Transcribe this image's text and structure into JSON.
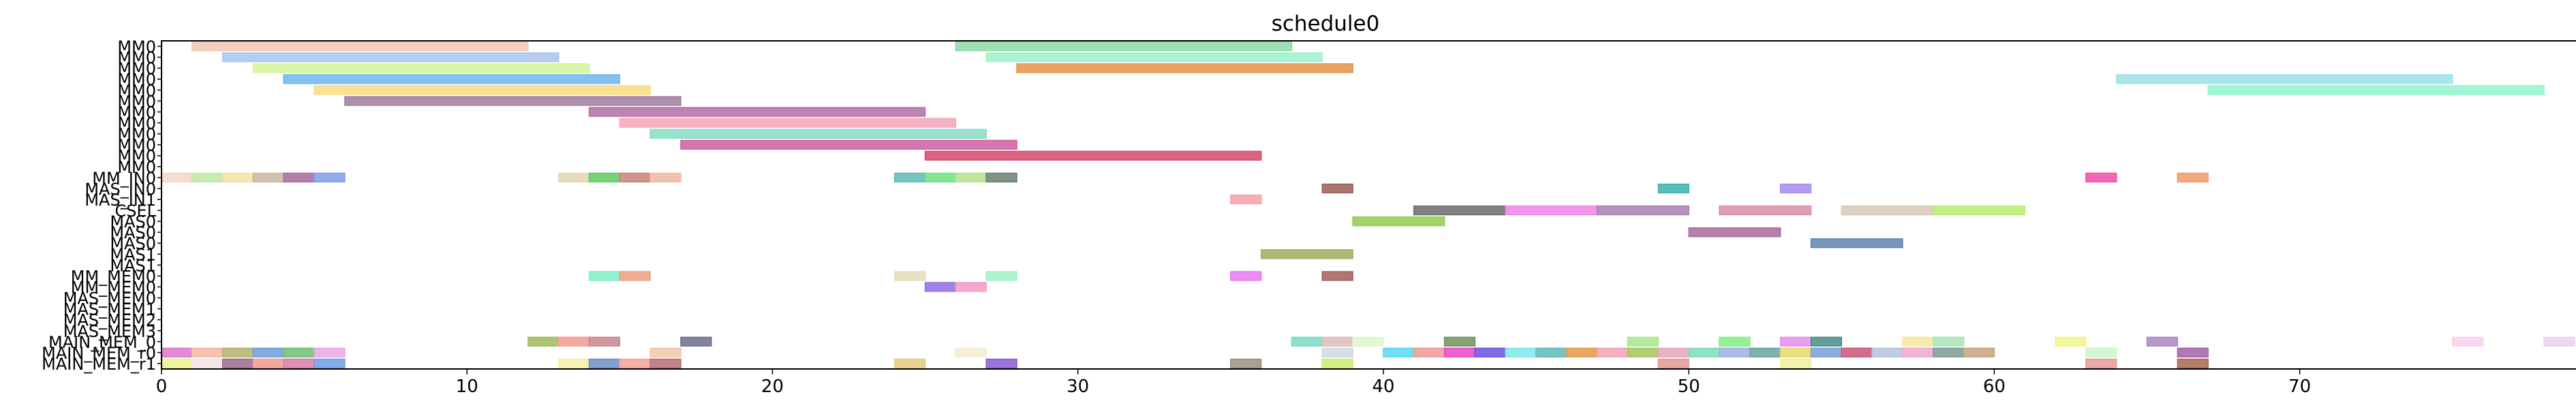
{
  "chart_data": {
    "type": "gantt",
    "title": "schedule0",
    "xlim": [
      0,
      79
    ],
    "x_ticks": [
      0,
      10,
      20,
      30,
      40,
      50,
      60,
      70
    ],
    "lanes": [
      "MM0",
      "MM0",
      "MM0",
      "MM0",
      "MM0",
      "MM0",
      "MM0",
      "MM0",
      "MM0",
      "MM0",
      "MM0",
      "MM0",
      "MM_IN0",
      "MAS_IN0",
      "MAS_IN1",
      "CSEL",
      "MAS0",
      "MAS0",
      "MAS0",
      "MAS1",
      "MAS1",
      "MM_MEM0",
      "MM_MEM0",
      "MAS_MEM0",
      "MAS_MEM1",
      "MAS_MEM2",
      "MAS_MEM3",
      "MAIN_MEM_0",
      "MAIN_MEM_r0",
      "MAIN_MEM_r1"
    ],
    "tasks": [
      {
        "lane": 0,
        "start": 1,
        "end": 12,
        "color": "#f2c8b4"
      },
      {
        "lane": 0,
        "start": 26,
        "end": 37,
        "color": "#8fd9a8"
      },
      {
        "lane": 1,
        "start": 2,
        "end": 13,
        "color": "#a9c4ea"
      },
      {
        "lane": 1,
        "start": 27,
        "end": 38,
        "color": "#9df2c9"
      },
      {
        "lane": 2,
        "start": 3,
        "end": 14,
        "color": "#d3f59a"
      },
      {
        "lane": 2,
        "start": 28,
        "end": 39,
        "color": "#e5924a"
      },
      {
        "lane": 3,
        "start": 4,
        "end": 15,
        "color": "#6fb6ee"
      },
      {
        "lane": 3,
        "start": 64,
        "end": 75,
        "color": "#9ce3e4"
      },
      {
        "lane": 4,
        "start": 5,
        "end": 16,
        "color": "#f7dc80"
      },
      {
        "lane": 4,
        "start": 67,
        "end": 78,
        "color": "#8ff5cc"
      },
      {
        "lane": 5,
        "start": 6,
        "end": 17,
        "color": "#a07e9e"
      },
      {
        "lane": 6,
        "start": 14,
        "end": 25,
        "color": "#b16fa6"
      },
      {
        "lane": 7,
        "start": 15,
        "end": 26,
        "color": "#f5a6b8"
      },
      {
        "lane": 8,
        "start": 16,
        "end": 27,
        "color": "#86ddc4"
      },
      {
        "lane": 9,
        "start": 17,
        "end": 28,
        "color": "#cf5e9e"
      },
      {
        "lane": 10,
        "start": 25,
        "end": 36,
        "color": "#d4486c"
      },
      {
        "lane": 12,
        "start": 0,
        "end": 1,
        "color": "#f5d6c8"
      },
      {
        "lane": 12,
        "start": 1,
        "end": 2,
        "color": "#bfe6a6"
      },
      {
        "lane": 12,
        "start": 2,
        "end": 3,
        "color": "#f2e3a3"
      },
      {
        "lane": 12,
        "start": 3,
        "end": 4,
        "color": "#c9b79f"
      },
      {
        "lane": 12,
        "start": 4,
        "end": 5,
        "color": "#a5699a"
      },
      {
        "lane": 12,
        "start": 5,
        "end": 6,
        "color": "#7c9de6"
      },
      {
        "lane": 12,
        "start": 13,
        "end": 14,
        "color": "#e0d8b2"
      },
      {
        "lane": 12,
        "start": 14,
        "end": 15,
        "color": "#5fcb5f"
      },
      {
        "lane": 12,
        "start": 15,
        "end": 16,
        "color": "#c5827a"
      },
      {
        "lane": 12,
        "start": 16,
        "end": 17,
        "color": "#efb8a0"
      },
      {
        "lane": 12,
        "start": 24,
        "end": 25,
        "color": "#5fbab3"
      },
      {
        "lane": 12,
        "start": 25,
        "end": 26,
        "color": "#6de07e"
      },
      {
        "lane": 12,
        "start": 26,
        "end": 27,
        "color": "#b6e18e"
      },
      {
        "lane": 12,
        "start": 27,
        "end": 28,
        "color": "#6a8070"
      },
      {
        "lane": 12,
        "start": 63,
        "end": 64,
        "color": "#ee4fa7"
      },
      {
        "lane": 12,
        "start": 66,
        "end": 67,
        "color": "#ee9a6c"
      },
      {
        "lane": 13,
        "start": 38,
        "end": 39,
        "color": "#9b5f55"
      },
      {
        "lane": 13,
        "start": 49,
        "end": 50,
        "color": "#3ab3b0"
      },
      {
        "lane": 13,
        "start": 53,
        "end": 54,
        "color": "#a58cf2"
      },
      {
        "lane": 14,
        "start": 35,
        "end": 36,
        "color": "#f7a1a6"
      },
      {
        "lane": 15,
        "start": 41,
        "end": 44,
        "color": "#6a6a6a"
      },
      {
        "lane": 15,
        "start": 44,
        "end": 47,
        "color": "#f083e6"
      },
      {
        "lane": 15,
        "start": 47,
        "end": 50,
        "color": "#a87eb4"
      },
      {
        "lane": 15,
        "start": 51,
        "end": 54,
        "color": "#dc8ea4"
      },
      {
        "lane": 15,
        "start": 55,
        "end": 58,
        "color": "#d8c7b9"
      },
      {
        "lane": 15,
        "start": 58,
        "end": 61,
        "color": "#b6ec6d"
      },
      {
        "lane": 16,
        "start": 39,
        "end": 42,
        "color": "#8fcd4e"
      },
      {
        "lane": 17,
        "start": 50,
        "end": 53,
        "color": "#a86a9c"
      },
      {
        "lane": 18,
        "start": 54,
        "end": 57,
        "color": "#5f84b2"
      },
      {
        "lane": 19,
        "start": 36,
        "end": 39,
        "color": "#9fae5b"
      },
      {
        "lane": 21,
        "start": 14,
        "end": 15,
        "color": "#7ef0c4"
      },
      {
        "lane": 21,
        "start": 15,
        "end": 16,
        "color": "#ed9e82"
      },
      {
        "lane": 21,
        "start": 24,
        "end": 25,
        "color": "#e4dcb9"
      },
      {
        "lane": 21,
        "start": 27,
        "end": 28,
        "color": "#9ef2c4"
      },
      {
        "lane": 21,
        "start": 35,
        "end": 36,
        "color": "#e779f0"
      },
      {
        "lane": 21,
        "start": 38,
        "end": 39,
        "color": "#a25e5c"
      },
      {
        "lane": 22,
        "start": 25,
        "end": 26,
        "color": "#8f6ee0"
      },
      {
        "lane": 22,
        "start": 26,
        "end": 27,
        "color": "#f59ac4"
      },
      {
        "lane": 27,
        "start": 12,
        "end": 13,
        "color": "#a2b75c"
      },
      {
        "lane": 27,
        "start": 13,
        "end": 14,
        "color": "#f39b91"
      },
      {
        "lane": 27,
        "start": 14,
        "end": 15,
        "color": "#c8868e"
      },
      {
        "lane": 27,
        "start": 17,
        "end": 18,
        "color": "#6e6e8e"
      },
      {
        "lane": 27,
        "start": 37,
        "end": 38,
        "color": "#78dbc4"
      },
      {
        "lane": 27,
        "start": 38,
        "end": 39,
        "color": "#dbbdb9"
      },
      {
        "lane": 27,
        "start": 39,
        "end": 40,
        "color": "#dff4cc"
      },
      {
        "lane": 27,
        "start": 42,
        "end": 43,
        "color": "#6f915f"
      },
      {
        "lane": 27,
        "start": 48,
        "end": 49,
        "color": "#a8e68d"
      },
      {
        "lane": 27,
        "start": 51,
        "end": 52,
        "color": "#81ef81"
      },
      {
        "lane": 27,
        "start": 53,
        "end": 54,
        "color": "#e98dee"
      },
      {
        "lane": 27,
        "start": 54,
        "end": 55,
        "color": "#4a8c86"
      },
      {
        "lane": 27,
        "start": 57,
        "end": 58,
        "color": "#f4e89e"
      },
      {
        "lane": 27,
        "start": 58,
        "end": 59,
        "color": "#a6e6b6"
      },
      {
        "lane": 27,
        "start": 62,
        "end": 63,
        "color": "#eef48e"
      },
      {
        "lane": 27,
        "start": 65,
        "end": 66,
        "color": "#ad86c4"
      },
      {
        "lane": 27,
        "start": 75,
        "end": 76,
        "color": "#f9d1ee"
      },
      {
        "lane": 27,
        "start": 78,
        "end": 79,
        "color": "#ead2ea"
      },
      {
        "lane": 28,
        "start": 0,
        "end": 1,
        "color": "#df75cf"
      },
      {
        "lane": 28,
        "start": 1,
        "end": 2,
        "color": "#f5b6a3"
      },
      {
        "lane": 28,
        "start": 2,
        "end": 3,
        "color": "#b3b36d"
      },
      {
        "lane": 28,
        "start": 3,
        "end": 4,
        "color": "#6f9ddc"
      },
      {
        "lane": 28,
        "start": 4,
        "end": 5,
        "color": "#6fbf73"
      },
      {
        "lane": 28,
        "start": 5,
        "end": 6,
        "color": "#e9a6e2"
      },
      {
        "lane": 28,
        "start": 16,
        "end": 17,
        "color": "#f0c6a6"
      },
      {
        "lane": 28,
        "start": 26,
        "end": 27,
        "color": "#f3ecd0"
      },
      {
        "lane": 28,
        "start": 38,
        "end": 39,
        "color": "#cfd8e6"
      },
      {
        "lane": 28,
        "start": 40,
        "end": 41,
        "color": "#5bd7ef"
      },
      {
        "lane": 28,
        "start": 41,
        "end": 42,
        "color": "#ee9a98"
      },
      {
        "lane": 28,
        "start": 42,
        "end": 43,
        "color": "#e646c9"
      },
      {
        "lane": 28,
        "start": 43,
        "end": 44,
        "color": "#6654e0"
      },
      {
        "lane": 28,
        "start": 44,
        "end": 45,
        "color": "#7ee6e9"
      },
      {
        "lane": 28,
        "start": 45,
        "end": 46,
        "color": "#5fbbbb"
      },
      {
        "lane": 28,
        "start": 46,
        "end": 47,
        "color": "#e29a4a"
      },
      {
        "lane": 28,
        "start": 47,
        "end": 48,
        "color": "#f3a2b4"
      },
      {
        "lane": 28,
        "start": 48,
        "end": 49,
        "color": "#a6c65c"
      },
      {
        "lane": 28,
        "start": 49,
        "end": 50,
        "color": "#e6a6ba"
      },
      {
        "lane": 28,
        "start": 50,
        "end": 51,
        "color": "#7fdbbc"
      },
      {
        "lane": 28,
        "start": 51,
        "end": 52,
        "color": "#9fb0e6"
      },
      {
        "lane": 28,
        "start": 52,
        "end": 53,
        "color": "#6aa39e"
      },
      {
        "lane": 28,
        "start": 53,
        "end": 54,
        "color": "#e8d96f"
      },
      {
        "lane": 28,
        "start": 54,
        "end": 55,
        "color": "#7a9fd6"
      },
      {
        "lane": 28,
        "start": 55,
        "end": 56,
        "color": "#c9557a"
      },
      {
        "lane": 28,
        "start": 56,
        "end": 57,
        "color": "#b6c2dd"
      },
      {
        "lane": 28,
        "start": 57,
        "end": 58,
        "color": "#f1a8cf"
      },
      {
        "lane": 28,
        "start": 58,
        "end": 59,
        "color": "#7d9a98"
      },
      {
        "lane": 28,
        "start": 59,
        "end": 60,
        "color": "#c6a47e"
      },
      {
        "lane": 28,
        "start": 63,
        "end": 64,
        "color": "#cdf5c9"
      },
      {
        "lane": 28,
        "start": 66,
        "end": 67,
        "color": "#a563a8"
      },
      {
        "lane": 29,
        "start": 0,
        "end": 1,
        "color": "#eef08e"
      },
      {
        "lane": 29,
        "start": 1,
        "end": 2,
        "color": "#f3e1e8"
      },
      {
        "lane": 29,
        "start": 2,
        "end": 3,
        "color": "#9a6a8e"
      },
      {
        "lane": 29,
        "start": 3,
        "end": 4,
        "color": "#ef9a8e"
      },
      {
        "lane": 29,
        "start": 4,
        "end": 5,
        "color": "#d77ba8"
      },
      {
        "lane": 29,
        "start": 5,
        "end": 6,
        "color": "#6f9de6"
      },
      {
        "lane": 29,
        "start": 13,
        "end": 14,
        "color": "#f5f0a6"
      },
      {
        "lane": 29,
        "start": 14,
        "end": 15,
        "color": "#6f8ec6"
      },
      {
        "lane": 29,
        "start": 15,
        "end": 16,
        "color": "#f1a294"
      },
      {
        "lane": 29,
        "start": 16,
        "end": 17,
        "color": "#b46e72"
      },
      {
        "lane": 29,
        "start": 24,
        "end": 25,
        "color": "#e6c984"
      },
      {
        "lane": 29,
        "start": 27,
        "end": 28,
        "color": "#8a5cd6"
      },
      {
        "lane": 29,
        "start": 35,
        "end": 36,
        "color": "#9a9080"
      },
      {
        "lane": 29,
        "start": 38,
        "end": 39,
        "color": "#c9ec6e"
      },
      {
        "lane": 29,
        "start": 49,
        "end": 50,
        "color": "#e49894"
      },
      {
        "lane": 29,
        "start": 53,
        "end": 54,
        "color": "#f0f09a"
      },
      {
        "lane": 29,
        "start": 63,
        "end": 64,
        "color": "#e49a9a"
      },
      {
        "lane": 29,
        "start": 66,
        "end": 67,
        "color": "#a46a4e"
      }
    ]
  }
}
